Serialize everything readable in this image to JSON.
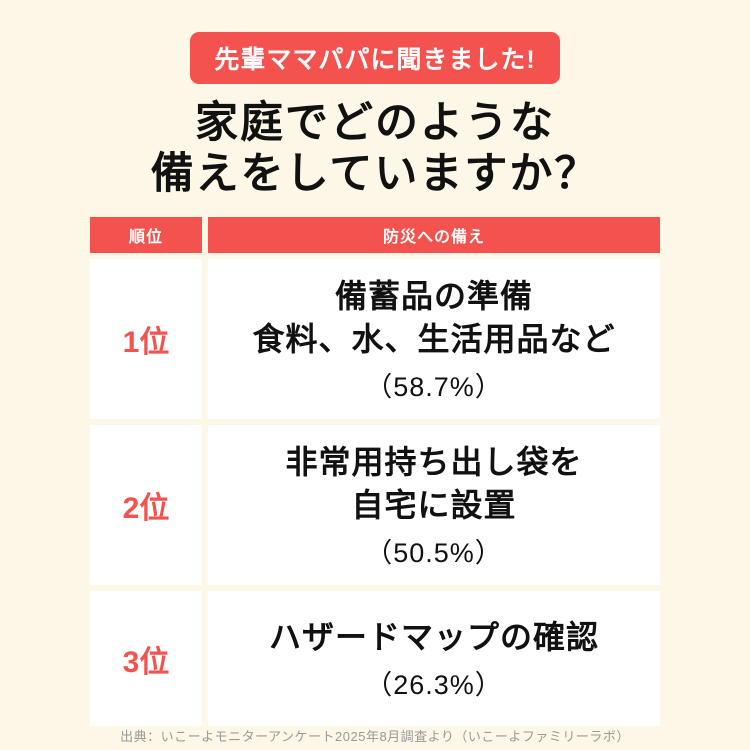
{
  "badge": {
    "label": "先輩ママパパに聞きました!"
  },
  "title": {
    "line1": "家庭でどのような",
    "line2": "備えをしていますか？"
  },
  "table": {
    "headers": {
      "rank": "順位",
      "item": "防災への備え"
    },
    "rows": [
      {
        "rank": "1位",
        "line1": "備蓄品の準備",
        "line2": "食料、水、生活用品など",
        "percent": "（58.7%）"
      },
      {
        "rank": "2位",
        "line1": "非常用持ち出し袋を",
        "line2": "自宅に設置",
        "percent": "（50.5%）"
      },
      {
        "rank": "3位",
        "line1": "ハザードマップの確認",
        "percent": "（26.3%）"
      }
    ]
  },
  "footer": {
    "source": "出典：いこーよモニターアンケート2025年8月調査より（いこーよファミリーラボ）"
  },
  "colors": {
    "accent": "#F4524E",
    "background": "#FCF7E6",
    "ink": "#111111",
    "muted": "#999999"
  },
  "chart_data": {
    "type": "table",
    "title": "家庭でどのような備えをしていますか？",
    "subtitle": "先輩ママパパに聞きました!",
    "columns": [
      "順位",
      "防災への備え"
    ],
    "ranks": [
      "1位",
      "2位",
      "3位"
    ],
    "categories": [
      "備蓄品の準備 食料、水、生活用品など",
      "非常用持ち出し袋を自宅に設置",
      "ハザードマップの確認"
    ],
    "values": [
      58.7,
      50.5,
      26.3
    ],
    "value_unit": "%",
    "source": "出典：いこーよモニターアンケート2025年8月調査より（いこーよファミリーラボ）"
  }
}
